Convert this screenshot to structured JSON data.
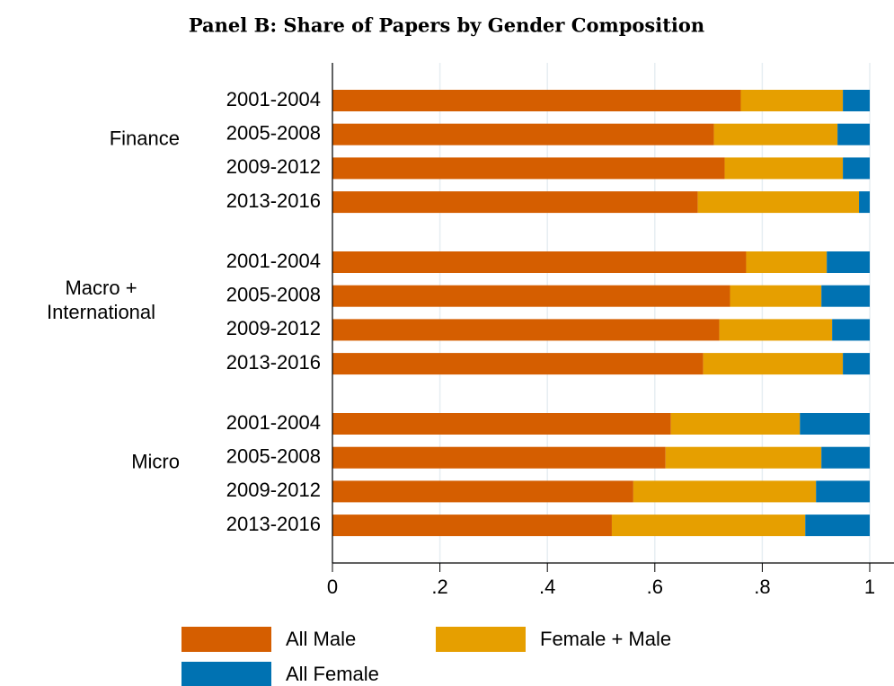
{
  "chart_data": {
    "type": "stacked-barh",
    "title": "Panel B: Share of Papers by Gender Composition",
    "groups": [
      "Finance",
      "Macro + International",
      "Micro"
    ],
    "categories": [
      "2001-2004",
      "2005-2008",
      "2009-2012",
      "2013-2016",
      "2001-2004",
      "2005-2008",
      "2009-2012",
      "2013-2016",
      "2001-2004",
      "2005-2008",
      "2009-2012",
      "2013-2016"
    ],
    "series": [
      {
        "name": "All Male",
        "color": "#d55e00",
        "values": [
          0.76,
          0.71,
          0.73,
          0.68,
          0.77,
          0.74,
          0.72,
          0.69,
          0.63,
          0.62,
          0.56,
          0.52
        ]
      },
      {
        "name": "Female + Male",
        "color": "#e69f00",
        "values": [
          0.19,
          0.23,
          0.22,
          0.3,
          0.15,
          0.17,
          0.21,
          0.26,
          0.24,
          0.29,
          0.34,
          0.36
        ]
      },
      {
        "name": "All Female",
        "color": "#0072b2",
        "values": [
          0.05,
          0.06,
          0.05,
          0.02,
          0.08,
          0.09,
          0.07,
          0.05,
          0.13,
          0.09,
          0.1,
          0.12
        ]
      }
    ],
    "xlim": [
      0,
      1
    ],
    "xticks": [
      0,
      {
        "value": 0.2,
        "label": ".2"
      },
      {
        "value": 0.4,
        "label": ".4"
      },
      {
        "value": 0.6,
        "label": ".6"
      },
      {
        "value": 0.8,
        "label": ".8"
      },
      1
    ],
    "grid": true
  }
}
